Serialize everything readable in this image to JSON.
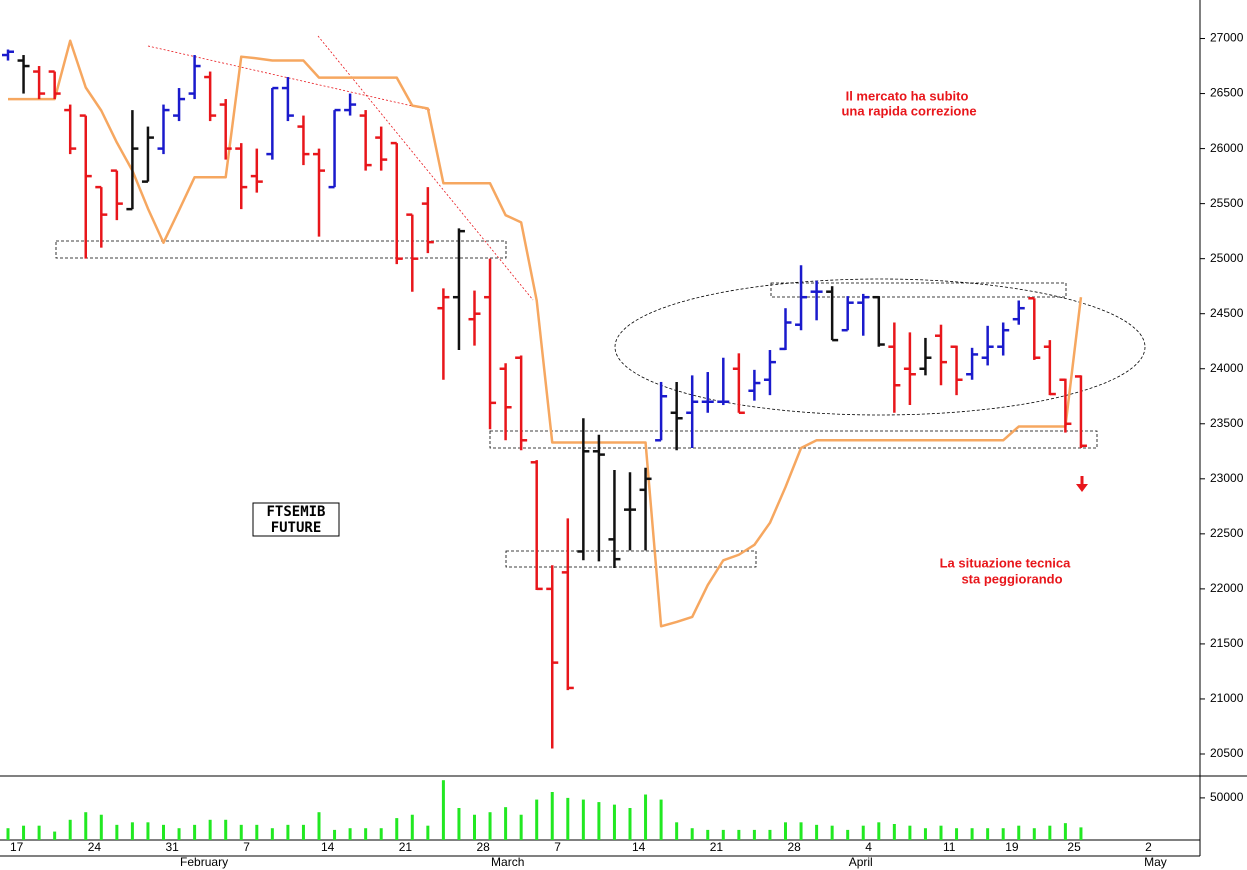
{
  "chart_data": {
    "type": "ohlc",
    "categories": [
      "17",
      null,
      null,
      null,
      null,
      "24",
      null,
      null,
      null,
      null,
      "31",
      null,
      null,
      null,
      null,
      "7",
      null,
      null,
      null,
      null,
      "14",
      null,
      null,
      null,
      null,
      "21",
      null,
      null,
      null,
      null,
      "28",
      null,
      null,
      null,
      null,
      "7",
      null,
      null,
      null,
      null,
      "14",
      null,
      null,
      null,
      null,
      "21",
      null,
      null,
      null,
      null,
      "28",
      null,
      null,
      null,
      null,
      "4",
      null,
      null,
      null,
      null,
      "11",
      null,
      null,
      null,
      "19",
      null,
      null,
      null,
      "25",
      null,
      null,
      null,
      null,
      "2"
    ],
    "months": [
      null,
      null,
      null,
      null,
      null,
      null,
      null,
      null,
      null,
      null,
      null,
      "February",
      null,
      null,
      null,
      null,
      null,
      null,
      null,
      null,
      null,
      null,
      null,
      null,
      null,
      null,
      null,
      null,
      null,
      null,
      null,
      "March",
      null,
      null,
      null,
      null,
      null,
      null,
      null,
      null,
      null,
      null,
      null,
      null,
      null,
      null,
      null,
      null,
      null,
      null,
      null,
      null,
      null,
      null,
      "April",
      null,
      null,
      null,
      null,
      null,
      null,
      null,
      null,
      null,
      null,
      null,
      null,
      null,
      null,
      null,
      null,
      null,
      null,
      "May"
    ],
    "open": [
      26850,
      26800,
      26700,
      26700,
      26350,
      26300,
      25650,
      25800,
      25450,
      25700,
      26000,
      26300,
      26500,
      26650,
      26400,
      26000,
      25750,
      25950,
      26550,
      26200,
      25950,
      25650,
      26350,
      26300,
      26100,
      26050,
      25400,
      25500,
      24550,
      24650,
      24450,
      24650,
      24000,
      24100,
      23150,
      22000,
      22150,
      22340,
      23250,
      22450,
      22720,
      22900,
      23350,
      23600,
      23600,
      23700,
      23700,
      24000,
      23800,
      23900,
      24180,
      24400,
      24700,
      24700,
      24350,
      24600,
      24650,
      24200,
      24000,
      24000,
      24300,
      24200,
      23950,
      24100,
      24200,
      24450,
      24640,
      24200,
      23900,
      23930,
      null,
      null,
      null,
      null
    ],
    "high": [
      26900,
      26850,
      26750,
      26700,
      26400,
      26300,
      25650,
      25800,
      26350,
      26200,
      26400,
      26550,
      26850,
      26700,
      26450,
      26050,
      26000,
      26550,
      26650,
      26300,
      26000,
      26350,
      26500,
      26350,
      26200,
      26050,
      25400,
      25650,
      24730,
      25275,
      24710,
      25000,
      24050,
      24120,
      23170,
      22215,
      22640,
      23550,
      23400,
      23080,
      23060,
      23100,
      23880,
      23880,
      23940,
      23970,
      24100,
      24140,
      23990,
      24170,
      24550,
      24940,
      24800,
      24750,
      24660,
      24680,
      24660,
      24420,
      24330,
      24280,
      24400,
      24210,
      24190,
      24390,
      24420,
      24620,
      24640,
      24260,
      23910,
      23940,
      null,
      null,
      null,
      null
    ],
    "low": [
      26800,
      26500,
      26450,
      26450,
      25950,
      25000,
      25100,
      25350,
      25450,
      25700,
      25950,
      26250,
      26450,
      26250,
      25900,
      25450,
      25600,
      25900,
      26250,
      25850,
      25200,
      25650,
      26300,
      25800,
      25800,
      24950,
      24700,
      25050,
      23900,
      24170,
      24210,
      23450,
      23350,
      23260,
      21990,
      20550,
      21080,
      22260,
      22250,
      22190,
      22350,
      22350,
      23350,
      23260,
      23280,
      23600,
      23670,
      23600,
      23710,
      23760,
      24170,
      24350,
      24440,
      24260,
      24350,
      24300,
      24200,
      23600,
      23670,
      23940,
      23850,
      23760,
      23900,
      24030,
      24120,
      24400,
      24080,
      23760,
      23420,
      23280,
      null,
      null,
      null,
      null
    ],
    "close": [
      26880,
      26750,
      26500,
      26500,
      26000,
      25750,
      25400,
      25500,
      26000,
      26100,
      26350,
      26450,
      26750,
      26300,
      26000,
      25650,
      25700,
      26550,
      26300,
      25950,
      25800,
      26350,
      26400,
      25850,
      25900,
      25000,
      25000,
      25150,
      24650,
      25250,
      24500,
      23690,
      23650,
      23350,
      22000,
      21330,
      21100,
      23250,
      23220,
      22270,
      22720,
      23000,
      23750,
      23550,
      23700,
      23700,
      23700,
      23600,
      23870,
      24060,
      24420,
      24650,
      24700,
      24260,
      24600,
      24650,
      24220,
      23850,
      23950,
      24100,
      24060,
      23900,
      24130,
      24200,
      24350,
      24550,
      24100,
      23770,
      23500,
      23300,
      null,
      null,
      null,
      null
    ],
    "colors": [
      "#1a1acc",
      "#111111",
      "#e8161b",
      "#e8161b",
      "#e8161b",
      "#e8161b",
      "#e8161b",
      "#e8161b",
      "#111111",
      "#111111",
      "#1a1acc",
      "#1a1acc",
      "#1a1acc",
      "#e8161b",
      "#e8161b",
      "#e8161b",
      "#e8161b",
      "#1a1acc",
      "#1a1acc",
      "#e8161b",
      "#e8161b",
      "#1a1acc",
      "#1a1acc",
      "#e8161b",
      "#e8161b",
      "#e8161b",
      "#e8161b",
      "#e8161b",
      "#e8161b",
      "#111111",
      "#e8161b",
      "#e8161b",
      "#e8161b",
      "#e8161b",
      "#e8161b",
      "#e8161b",
      "#e8161b",
      "#111111",
      "#111111",
      "#111111",
      "#111111",
      "#111111",
      "#1a1acc",
      "#111111",
      "#1a1acc",
      "#1a1acc",
      "#1a1acc",
      "#e8161b",
      "#1a1acc",
      "#1a1acc",
      "#1a1acc",
      "#1a1acc",
      "#1a1acc",
      "#111111",
      "#1a1acc",
      "#1a1acc",
      "#111111",
      "#e8161b",
      "#e8161b",
      "#111111",
      "#e8161b",
      "#e8161b",
      "#1a1acc",
      "#1a1acc",
      "#1a1acc",
      "#1a1acc",
      "#e8161b",
      "#e8161b",
      "#e8161b",
      "#e8161b",
      null,
      null,
      null,
      null
    ],
    "ylim": [
      20300,
      27350
    ],
    "yticks": [
      20500,
      21000,
      21500,
      22000,
      22500,
      23000,
      23500,
      24000,
      24500,
      25000,
      25500,
      26000,
      26500,
      27000
    ],
    "overlay": {
      "type": "line",
      "color": "#f6a760",
      "values": [
        26450,
        26450,
        26450,
        26450,
        26980,
        26555,
        26345,
        26055,
        25800,
        25455,
        25145,
        25440,
        25740,
        25740,
        25740,
        26835,
        26820,
        26800,
        26800,
        26800,
        26645,
        26645,
        26645,
        26645,
        26645,
        26645,
        26390,
        26365,
        25685,
        25685,
        25685,
        25685,
        25395,
        25330,
        24620,
        23330,
        23330,
        23330,
        23330,
        23330,
        23330,
        23330,
        21660,
        21700,
        21745,
        22035,
        22260,
        22310,
        22400,
        22600,
        22925,
        23280,
        23350,
        23350,
        23350,
        23350,
        23350,
        23350,
        23350,
        23350,
        23350,
        23350,
        23350,
        23350,
        23350,
        23475,
        23475,
        23475,
        23475,
        24650,
        null,
        null,
        null,
        null
      ]
    },
    "volume": {
      "type": "bar",
      "color": "#22e822",
      "values": [
        14000,
        17000,
        17000,
        10000,
        24000,
        33000,
        30000,
        18000,
        21000,
        21000,
        18000,
        14000,
        18000,
        24000,
        24000,
        18000,
        18000,
        14000,
        18000,
        18000,
        33000,
        12000,
        14000,
        14000,
        14000,
        26000,
        30000,
        17000,
        71000,
        38000,
        30000,
        33000,
        39000,
        30000,
        48000,
        57000,
        50000,
        48000,
        45000,
        42000,
        38000,
        54000,
        48000,
        21000,
        14000,
        12000,
        12000,
        12000,
        12000,
        12000,
        21000,
        21000,
        18000,
        17000,
        12000,
        17000,
        21000,
        19000,
        17000,
        14000,
        17000,
        14000,
        14000,
        14000,
        14000,
        17000,
        14000,
        17000,
        20000,
        15000,
        null,
        null,
        null,
        null
      ],
      "ylim": [
        0,
        76000
      ],
      "yticks": [
        50000
      ]
    },
    "label_box": [
      "FTSEMIB",
      "FUTURE"
    ],
    "annotations": [
      [
        "Il mercato ha subito",
        "una rapida correzione"
      ],
      [
        "La situazione tecnica",
        "sta peggiorando"
      ]
    ]
  }
}
